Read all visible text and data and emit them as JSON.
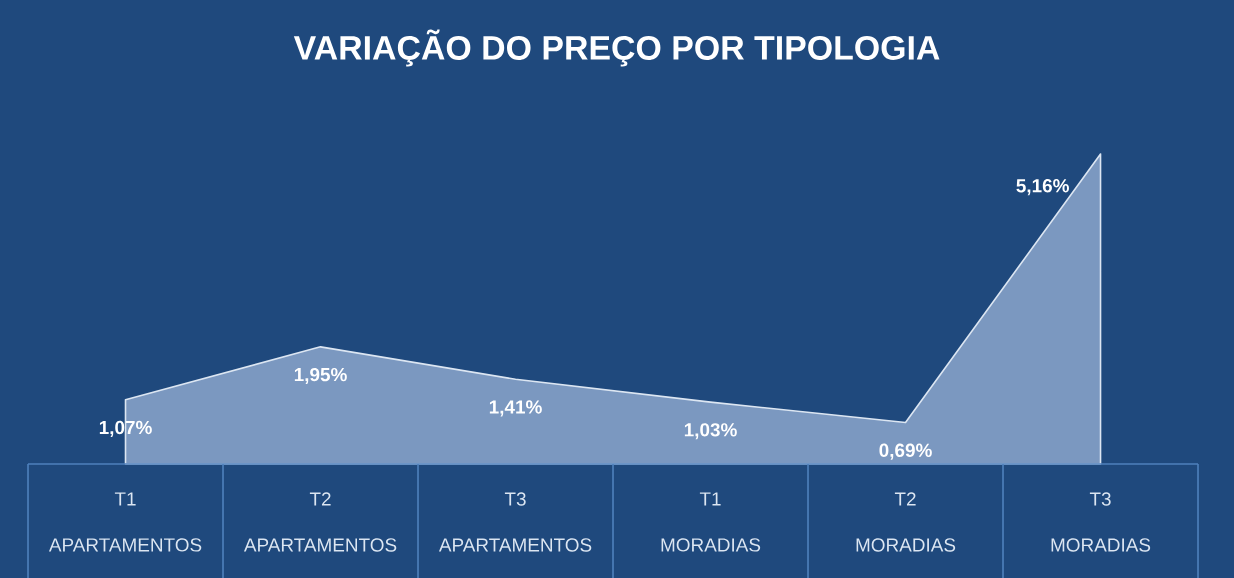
{
  "chart_data": {
    "type": "area",
    "title": "VARIAÇÃO DO PREÇO POR TIPOLOGIA",
    "categories": [
      "T1 APARTAMENTOS",
      "T2 APARTAMENTOS",
      "T3 APARTAMENTOS",
      "T1 MORADIAS",
      "T2 MORADIAS",
      "T3 MORADIAS"
    ],
    "series": [
      {
        "color": "#7b98c0",
        "values": [
          1.07,
          1.95,
          1.41,
          1.03,
          0.69,
          5.16
        ],
        "value_labels": [
          "1,07%",
          "1,95%",
          "1,41%",
          "1,03%",
          "0,69%",
          "5,16%"
        ]
      }
    ],
    "marker": "none"
  }
}
